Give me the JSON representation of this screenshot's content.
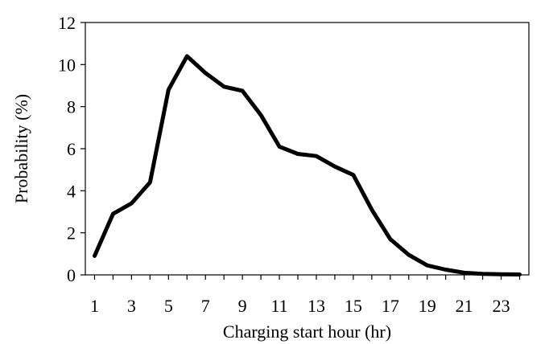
{
  "chart_data": {
    "type": "line",
    "title": "",
    "xlabel": "Charging start hour (hr)",
    "ylabel": "Probability (%)",
    "xlim": [
      0.5,
      24.5
    ],
    "ylim": [
      0,
      12
    ],
    "x_ticks": [
      1,
      3,
      5,
      7,
      9,
      11,
      13,
      15,
      17,
      19,
      21,
      23
    ],
    "y_ticks": [
      0,
      2,
      4,
      6,
      8,
      10,
      12
    ],
    "x_tick_labels": [
      "1",
      "3",
      "5",
      "7",
      "9",
      "11",
      "13",
      "15",
      "17",
      "19",
      "21",
      "23"
    ],
    "y_tick_labels": [
      "0",
      "2",
      "4",
      "6",
      "8",
      "10",
      "12"
    ],
    "grid": false,
    "legend": "none",
    "series": [
      {
        "x": [
          1,
          2,
          3,
          4,
          5,
          6,
          7,
          8,
          9,
          10,
          11,
          12,
          13,
          14,
          15,
          16,
          17,
          18,
          19,
          20,
          21,
          22,
          23,
          24
        ],
        "y": [
          0.9,
          2.9,
          3.4,
          4.4,
          8.8,
          10.4,
          9.6,
          8.95,
          8.75,
          7.6,
          6.1,
          5.75,
          5.65,
          5.15,
          4.75,
          3.1,
          1.7,
          0.95,
          0.45,
          0.25,
          0.1,
          0.05,
          0.03,
          0.02
        ],
        "color": "#000000"
      }
    ]
  }
}
